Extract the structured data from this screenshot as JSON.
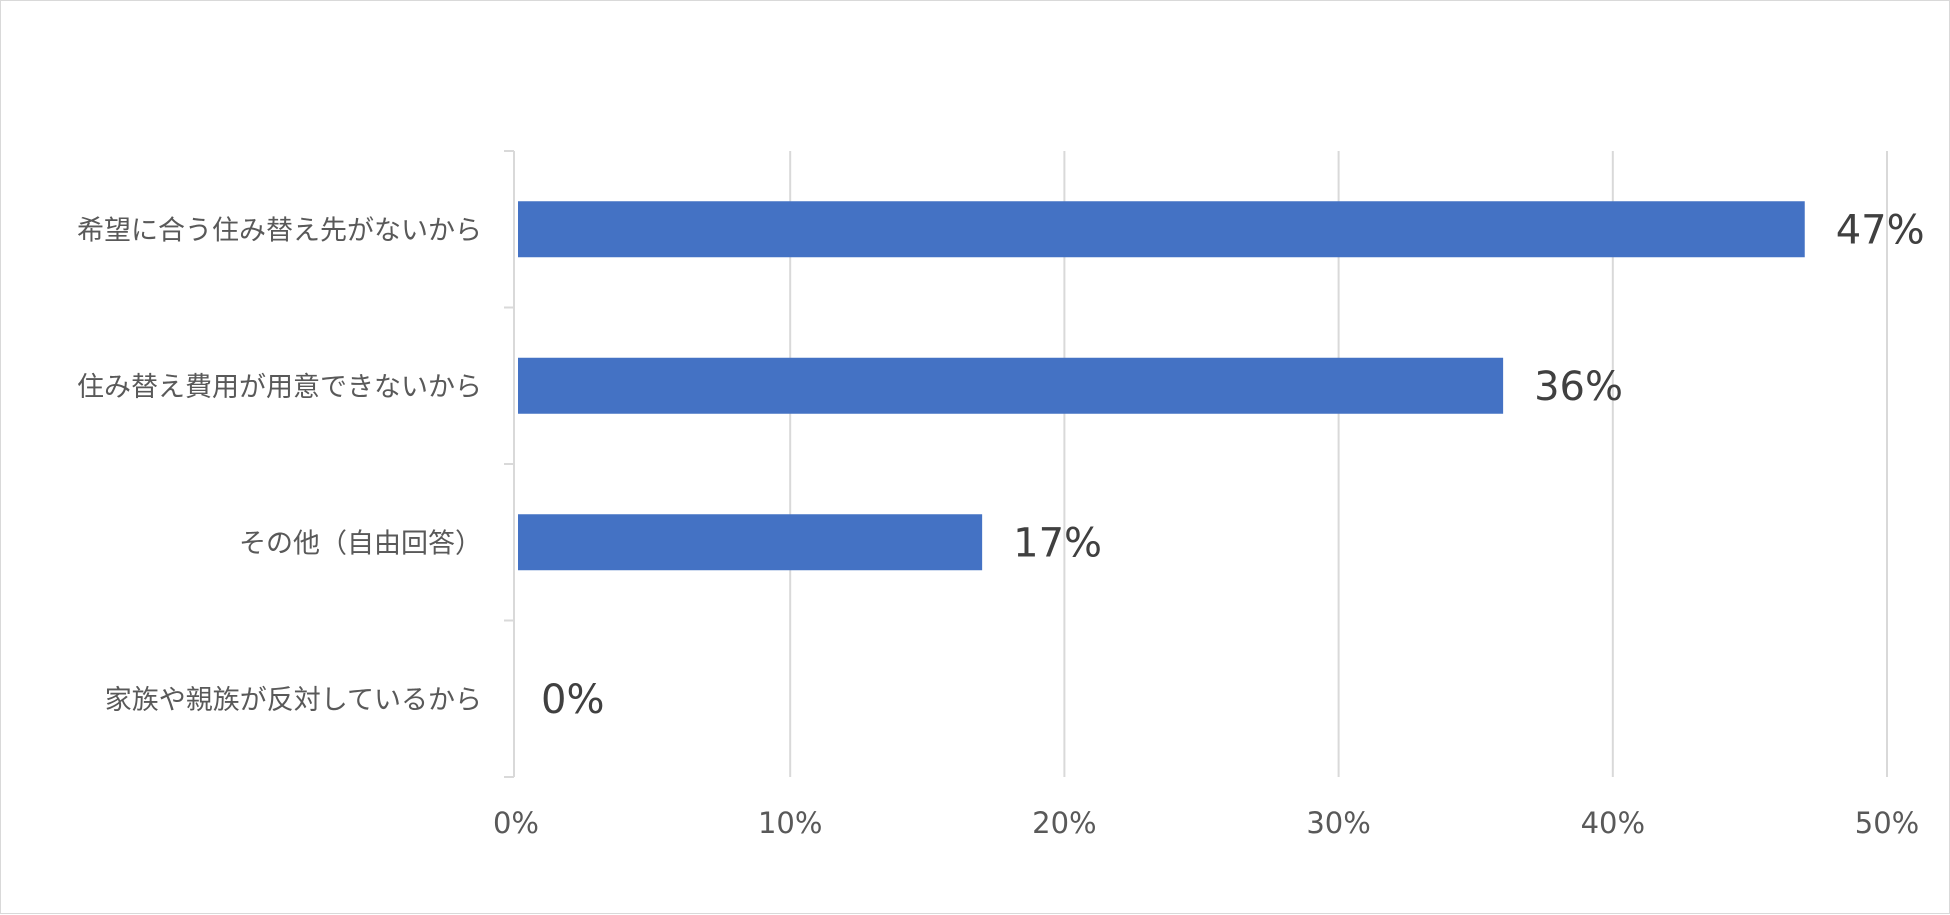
{
  "chart_data": {
    "type": "bar",
    "orientation": "horizontal",
    "categories": [
      "希望に合う住み替え先がないから",
      "住み替え費用が用意できないから",
      "その他（自由回答）",
      "家族や親族が反対しているから"
    ],
    "values": [
      47,
      36,
      17,
      0
    ],
    "data_labels": [
      "47%",
      "36%",
      "17%",
      "0%"
    ],
    "x_ticks": [
      "0%",
      "10%",
      "20%",
      "30%",
      "40%",
      "50%"
    ],
    "xlim": [
      0,
      50
    ],
    "grid": true,
    "legend": "none",
    "bar_color": "#4472C4",
    "grid_color": "#D9D9D9",
    "title": "",
    "xlabel": "",
    "ylabel": ""
  }
}
